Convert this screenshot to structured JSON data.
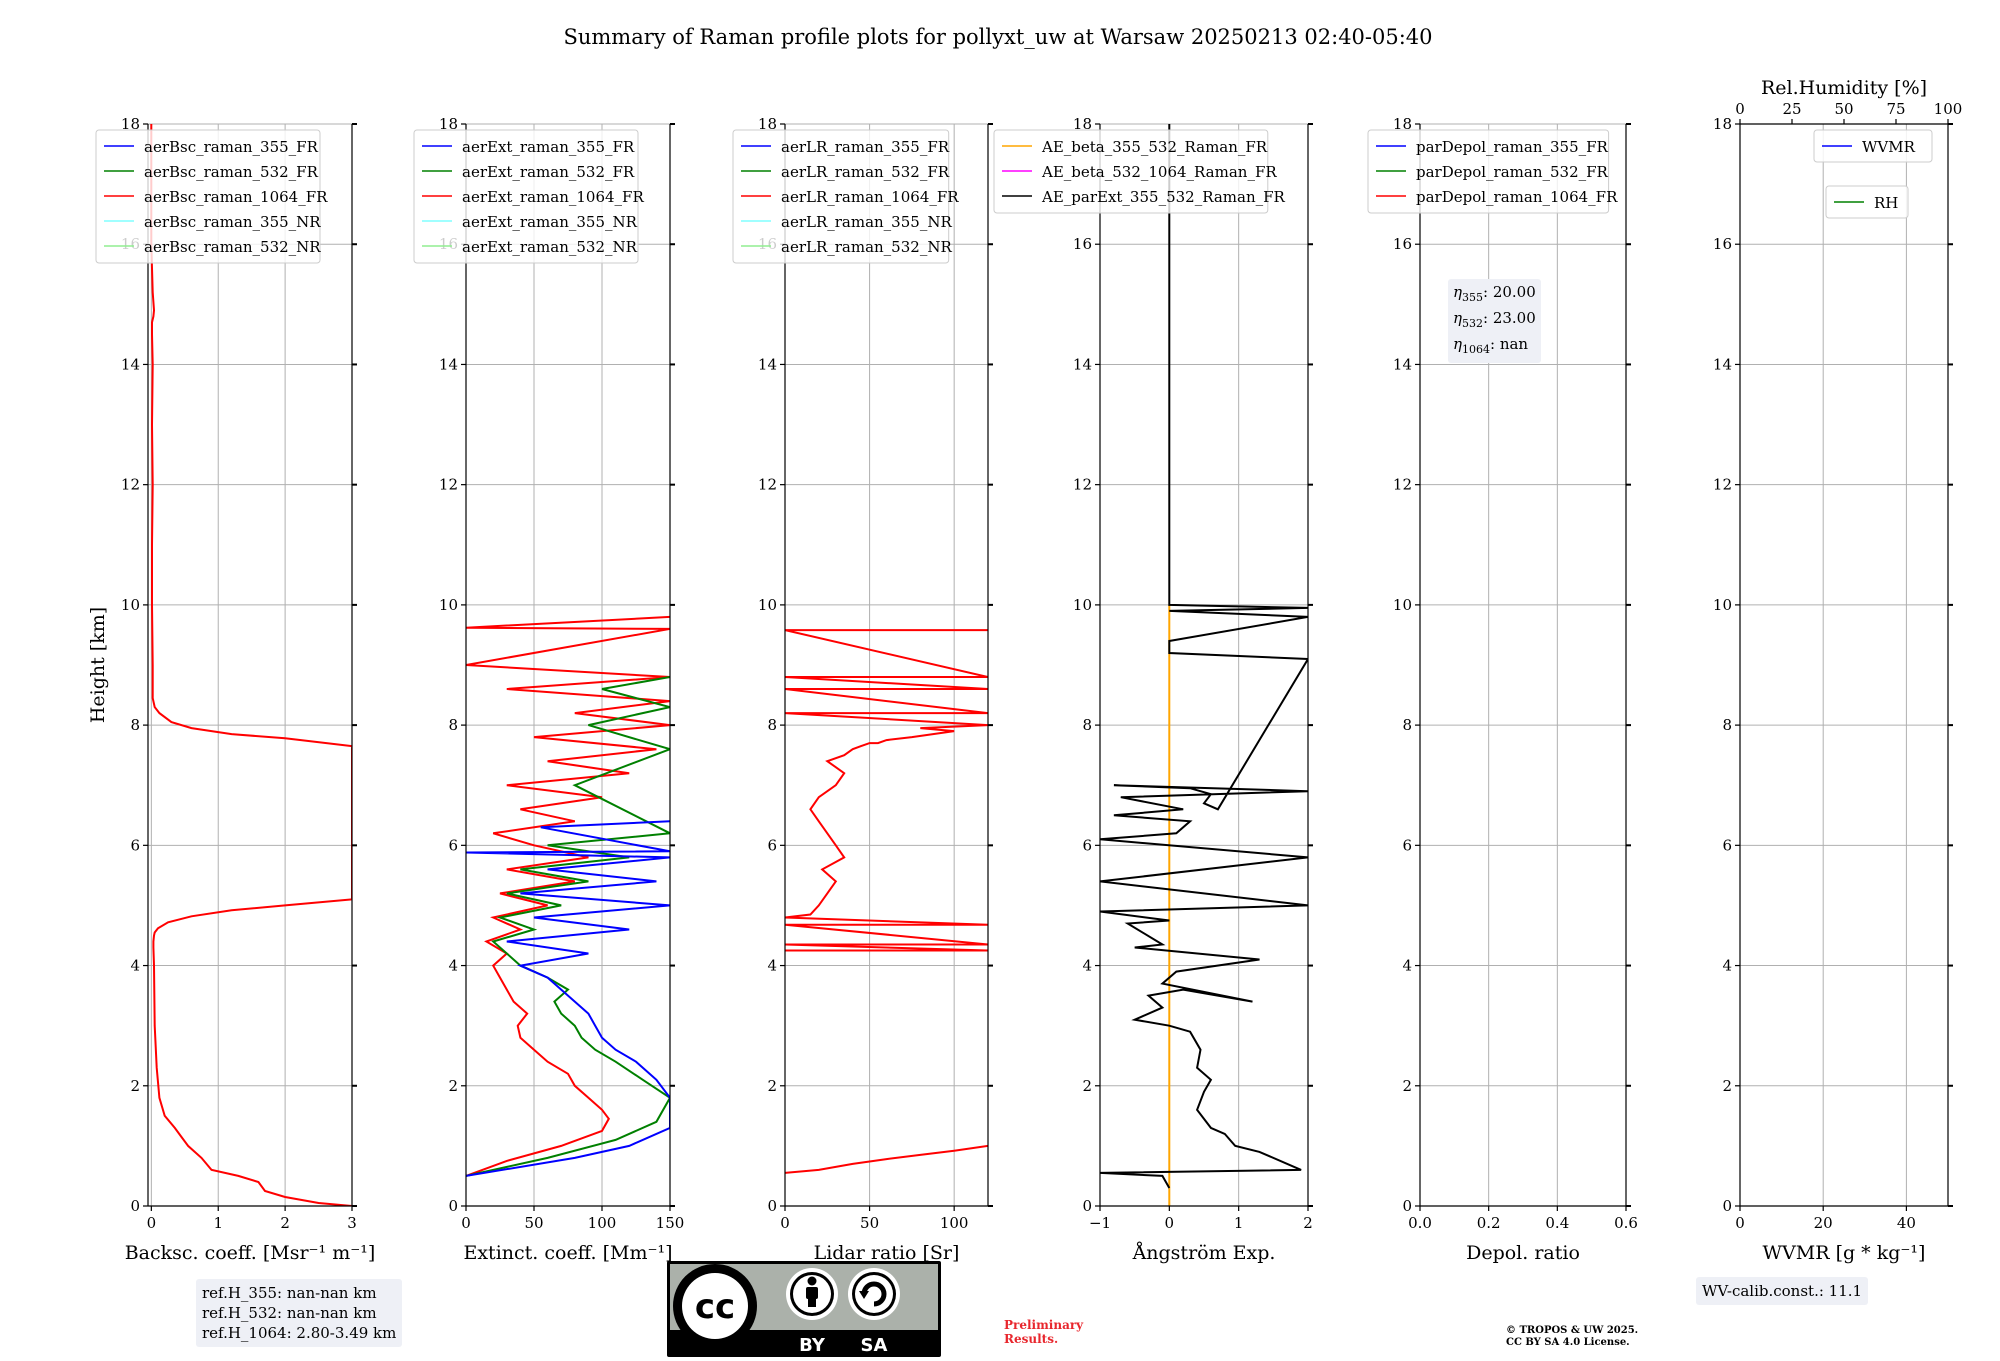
{
  "page": {
    "title": "Summary of Raman profile plots for pollyxt_uw at Warsaw 20250213 02:40-05:40"
  },
  "chart_data": [
    {
      "type": "line",
      "id": "bsc",
      "xlabel": "Backsc. coeff. [Msr⁻¹ m⁻¹]",
      "ylabel": "Height [km]",
      "xlim": [
        -0.05,
        3
      ],
      "ylim": [
        0,
        18
      ],
      "xticks": [
        0,
        1,
        2,
        3
      ],
      "xticklabels": [
        "0",
        "1",
        "2",
        "3"
      ],
      "yticks": [
        0,
        2,
        4,
        6,
        8,
        10,
        12,
        14,
        16,
        18
      ],
      "grid": true,
      "legend_placement": "top-left",
      "legend": [
        {
          "name": "aerBsc_raman_355_FR",
          "color": "#0000ff"
        },
        {
          "name": "aerBsc_raman_532_FR",
          "color": "#008000"
        },
        {
          "name": "aerBsc_raman_1064_FR",
          "color": "#ff0000"
        },
        {
          "name": "aerBsc_raman_355_NR",
          "color": "#80ffff"
        },
        {
          "name": "aerBsc_raman_532_NR",
          "color": "#90ee90"
        }
      ],
      "series": [
        {
          "name": "aerBsc_raman_1064_FR",
          "color": "#ff0000",
          "x": [
            3.0,
            2.5,
            2.0,
            1.7,
            1.6,
            1.3,
            0.9,
            0.75,
            0.55,
            0.45,
            0.35,
            0.2,
            0.12,
            0.08,
            0.05,
            0.04,
            0.03,
            0.03,
            0.04,
            0.05,
            0.1,
            0.25,
            0.6,
            1.2,
            2.0,
            3.0,
            3.0,
            2.0,
            1.2,
            0.6,
            0.3,
            0.12,
            0.05,
            0.02,
            0.02,
            0.01,
            0.01,
            0.02,
            0.01,
            0.02,
            0.01,
            0.01,
            0.03,
            0.04,
            0.02,
            0.0,
            0.0
          ],
          "y": [
            0.0,
            0.05,
            0.15,
            0.25,
            0.4,
            0.5,
            0.6,
            0.8,
            1.0,
            1.15,
            1.3,
            1.5,
            1.8,
            2.3,
            3.0,
            4.0,
            4.3,
            4.4,
            4.5,
            4.55,
            4.62,
            4.72,
            4.82,
            4.92,
            5.0,
            5.1,
            7.65,
            7.78,
            7.85,
            7.95,
            8.05,
            8.2,
            8.3,
            8.45,
            9.0,
            10.0,
            11.0,
            12.0,
            13.0,
            14.0,
            14.5,
            14.7,
            14.8,
            14.9,
            15.2,
            16.0,
            18.0
          ]
        }
      ],
      "annotation": [
        "ref.H_355: nan-nan km",
        "ref.H_532: nan-nan km",
        "ref.H_1064: 2.80-3.49 km"
      ]
    },
    {
      "type": "line",
      "id": "ext",
      "xlabel": "Extinct. coeff. [Mm⁻¹]",
      "xlim": [
        0,
        150
      ],
      "ylim": [
        0,
        18
      ],
      "xticks": [
        0,
        50,
        100,
        150
      ],
      "xticklabels": [
        "0",
        "50",
        "100",
        "150"
      ],
      "yticks": [
        0,
        2,
        4,
        6,
        8,
        10,
        12,
        14,
        16,
        18
      ],
      "grid": true,
      "legend_placement": "top-left",
      "legend": [
        {
          "name": "aerExt_raman_355_FR",
          "color": "#0000ff"
        },
        {
          "name": "aerExt_raman_532_FR",
          "color": "#008000"
        },
        {
          "name": "aerExt_raman_1064_FR",
          "color": "#ff0000"
        },
        {
          "name": "aerExt_raman_355_NR",
          "color": "#80ffff"
        },
        {
          "name": "aerExt_raman_532_NR",
          "color": "#90ee90"
        }
      ],
      "series": [
        {
          "name": "aerExt_raman_1064_FR",
          "color": "#ff0000",
          "x": [
            0,
            30,
            70,
            100,
            105,
            100,
            90,
            80,
            75,
            60,
            50,
            40,
            38,
            45,
            35,
            30,
            25,
            20,
            30,
            15,
            40,
            20,
            60,
            25,
            80,
            30,
            90,
            50,
            20,
            80,
            40,
            100,
            30,
            120,
            60,
            140,
            50,
            150,
            80,
            150,
            30,
            150,
            0,
            150,
            0,
            150
          ],
          "y": [
            0.5,
            0.75,
            1.0,
            1.25,
            1.45,
            1.6,
            1.8,
            2.0,
            2.2,
            2.4,
            2.6,
            2.8,
            3.0,
            3.2,
            3.4,
            3.6,
            3.8,
            4.0,
            4.2,
            4.4,
            4.6,
            4.8,
            5.0,
            5.2,
            5.4,
            5.6,
            5.8,
            6.0,
            6.2,
            6.4,
            6.6,
            6.8,
            7.0,
            7.2,
            7.4,
            7.6,
            7.8,
            8.0,
            8.2,
            8.4,
            8.6,
            8.8,
            9.0,
            9.6,
            9.62,
            9.8
          ]
        },
        {
          "name": "aerExt_raman_532_FR",
          "color": "#008000",
          "x": [
            0,
            60,
            110,
            140,
            150,
            130,
            110,
            95,
            85,
            80,
            70,
            65,
            75,
            60,
            40,
            30,
            20,
            50,
            25,
            70,
            30,
            90,
            40,
            120,
            60,
            150,
            80,
            150,
            90,
            150,
            100,
            150
          ],
          "y": [
            0.5,
            0.8,
            1.1,
            1.4,
            1.8,
            2.1,
            2.4,
            2.6,
            2.8,
            3.0,
            3.2,
            3.4,
            3.6,
            3.8,
            4.0,
            4.2,
            4.4,
            4.6,
            4.8,
            5.0,
            5.2,
            5.4,
            5.6,
            5.8,
            6.0,
            6.2,
            7.0,
            7.6,
            8.0,
            8.3,
            8.6,
            8.8
          ]
        },
        {
          "name": "aerExt_raman_355_FR",
          "color": "#0000ff",
          "x": [
            0,
            80,
            120,
            150,
            150,
            140,
            125,
            110,
            100,
            95,
            90,
            80,
            70,
            60,
            40,
            90,
            30,
            120,
            50,
            150,
            40,
            140,
            60,
            150,
            0,
            150,
            55,
            150
          ],
          "y": [
            0.5,
            0.8,
            1.0,
            1.3,
            1.8,
            2.1,
            2.4,
            2.6,
            2.8,
            3.0,
            3.2,
            3.4,
            3.6,
            3.8,
            4.0,
            4.2,
            4.4,
            4.6,
            4.8,
            5.0,
            5.2,
            5.4,
            5.6,
            5.8,
            5.88,
            5.9,
            6.3,
            6.4
          ]
        }
      ]
    },
    {
      "type": "line",
      "id": "lr",
      "xlabel": "Lidar ratio [Sr]",
      "xlim": [
        0,
        120
      ],
      "ylim": [
        0,
        18
      ],
      "xticks": [
        0,
        50,
        100
      ],
      "xticklabels": [
        "0",
        "50",
        "100"
      ],
      "yticks": [
        0,
        2,
        4,
        6,
        8,
        10,
        12,
        14,
        16,
        18
      ],
      "grid": true,
      "legend_placement": "top-left",
      "legend": [
        {
          "name": "aerLR_raman_355_FR",
          "color": "#0000ff"
        },
        {
          "name": "aerLR_raman_532_FR",
          "color": "#008000"
        },
        {
          "name": "aerLR_raman_1064_FR",
          "color": "#ff0000"
        },
        {
          "name": "aerLR_raman_355_NR",
          "color": "#80ffff"
        },
        {
          "name": "aerLR_raman_532_NR",
          "color": "#90ee90"
        }
      ],
      "series": [
        {
          "name": "aerLR_raman_1064_FR",
          "color": "#ff0000",
          "x": [
            0,
            20,
            40,
            60,
            80,
            100,
            120
          ],
          "y": [
            0.55,
            0.6,
            0.7,
            0.78,
            0.85,
            0.92,
            1.0
          ]
        },
        {
          "name": "aerLR_raman_1064_FR",
          "color": "#ff0000",
          "x": [
            0,
            120,
            0,
            120,
            0,
            120,
            0,
            15,
            20,
            25,
            30,
            22,
            35,
            30,
            25,
            20,
            15,
            20,
            30,
            35,
            30,
            25,
            35,
            40,
            45,
            50,
            55,
            60,
            75,
            100,
            80,
            120,
            0,
            120,
            0,
            120,
            0,
            120,
            0,
            120
          ],
          "y": [
            4.25,
            4.25,
            4.35,
            4.35,
            4.68,
            4.68,
            4.8,
            4.85,
            5.0,
            5.2,
            5.4,
            5.6,
            5.8,
            6.0,
            6.2,
            6.4,
            6.6,
            6.8,
            7.0,
            7.2,
            7.3,
            7.4,
            7.5,
            7.6,
            7.65,
            7.7,
            7.7,
            7.75,
            7.8,
            7.9,
            7.95,
            8.0,
            8.2,
            8.2,
            8.6,
            8.6,
            8.8,
            8.8,
            9.58,
            9.58
          ]
        }
      ]
    },
    {
      "type": "line",
      "id": "ae",
      "xlabel": "Ångström Exp.",
      "xlim": [
        -1,
        2
      ],
      "ylim": [
        0,
        18
      ],
      "xticks": [
        -1,
        0,
        1,
        2
      ],
      "xticklabels": [
        "−1",
        "0",
        "1",
        "2"
      ],
      "yticks": [
        0,
        2,
        4,
        6,
        8,
        10,
        12,
        14,
        16,
        18
      ],
      "grid": true,
      "legend_placement": "top-left",
      "legend": [
        {
          "name": "AE_beta_355_532_Raman_FR",
          "color": "#ffa500"
        },
        {
          "name": "AE_beta_532_1064_Raman_FR",
          "color": "#ff00ff"
        },
        {
          "name": "AE_parExt_355_532_Raman_FR",
          "color": "#000000"
        }
      ],
      "series": [
        {
          "name": "AE_beta_355_532_Raman_FR",
          "color": "#ffa500",
          "x": [
            0,
            0
          ],
          "y": [
            0,
            10.0
          ]
        },
        {
          "name": "AE_parExt_355_532_Raman_FR",
          "color": "#000000",
          "x": [
            0,
            -0.1,
            -1,
            1.9,
            1.3,
            0.95,
            0.8,
            0.6,
            0.4,
            0.5,
            0.6,
            0.4,
            0.45,
            0.3,
            0.0,
            -0.5,
            -0.1,
            -0.3,
            0.2,
            1.2,
            -0.1,
            0.1,
            1.3,
            -0.5,
            -0.1,
            -0.6,
            0.0,
            -1,
            2.0,
            -1,
            2.0,
            -1,
            0.1,
            0.3,
            -0.8,
            0.2,
            -0.7,
            2.0,
            -0.8,
            0.3,
            0.6,
            0.5,
            0.7,
            2.0,
            0.0,
            0.0,
            2.0,
            0.0,
            2.0,
            0.0,
            0.0
          ],
          "y": [
            0.3,
            0.5,
            0.55,
            0.6,
            0.9,
            1.0,
            1.2,
            1.3,
            1.6,
            1.9,
            2.1,
            2.3,
            2.6,
            2.9,
            3.0,
            3.1,
            3.3,
            3.5,
            3.6,
            3.4,
            3.7,
            3.9,
            4.1,
            4.3,
            4.35,
            4.7,
            4.75,
            4.9,
            5.0,
            5.4,
            5.8,
            6.1,
            6.2,
            6.4,
            6.5,
            6.6,
            6.8,
            6.9,
            7.0,
            6.95,
            6.85,
            6.7,
            6.6,
            9.1,
            9.2,
            9.4,
            9.8,
            9.9,
            9.95,
            10.0,
            18.0
          ]
        }
      ]
    },
    {
      "type": "line",
      "id": "depol",
      "xlabel": "Depol. ratio",
      "xlim": [
        0,
        0.6
      ],
      "ylim": [
        0,
        18
      ],
      "xticks": [
        0,
        0.2,
        0.4,
        0.6
      ],
      "xticklabels": [
        "0.0",
        "0.2",
        "0.4",
        "0.6"
      ],
      "yticks": [
        0,
        2,
        4,
        6,
        8,
        10,
        12,
        14,
        16,
        18
      ],
      "grid": true,
      "legend_placement": "top-left",
      "legend": [
        {
          "name": "parDepol_raman_355_FR",
          "color": "#0000ff"
        },
        {
          "name": "parDepol_raman_532_FR",
          "color": "#008000"
        },
        {
          "name": "parDepol_raman_1064_FR",
          "color": "#ff0000"
        }
      ],
      "series": [],
      "annotation": [
        "20.00",
        "23.00",
        "nan"
      ]
    },
    {
      "type": "line",
      "id": "wv",
      "xlabel": "WVMR [g * kg⁻¹]",
      "toplabel": "Rel.Humidity [%]",
      "xlim": [
        0,
        50
      ],
      "ylim": [
        0,
        18
      ],
      "xticks": [
        0,
        20,
        40
      ],
      "xticklabels": [
        "0",
        "20",
        "40"
      ],
      "top_xticks": [
        0,
        25,
        50,
        75,
        100
      ],
      "top_xticklabels": [
        "0",
        "25",
        "50",
        "75",
        "100"
      ],
      "yticks": [
        0,
        2,
        4,
        6,
        8,
        10,
        12,
        14,
        16,
        18
      ],
      "grid": true,
      "legend_placement": "top-right",
      "legend": [
        {
          "name": "WVMR",
          "color": "#0000ff"
        },
        {
          "name": "RH",
          "color": "#008000"
        }
      ],
      "series": [],
      "annotation": [
        "WV-calib.const.: 11.1"
      ]
    }
  ],
  "footer": {
    "cc_labels": [
      "BY",
      "SA"
    ],
    "preliminary": [
      "Preliminary",
      "Results."
    ],
    "copyright": [
      "© TROPOS & UW 2025.",
      "CC BY SA 4.0 License."
    ]
  }
}
